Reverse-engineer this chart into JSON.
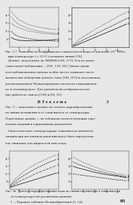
{
  "background": "#e8e8e8",
  "text_color": "#1a1a1a",
  "fig1": {
    "left_panel": {
      "xlim": [
        0,
        5
      ],
      "ylim": [
        0,
        5
      ],
      "curves": [
        {
          "x": [
            0.2,
            0.5,
            1.0,
            2.0,
            3.0,
            4.0,
            4.8
          ],
          "y": [
            4.5,
            4.0,
            3.4,
            2.8,
            2.5,
            2.3,
            2.2
          ],
          "style": "dotted"
        },
        {
          "x": [
            0.2,
            0.5,
            1.0,
            2.0,
            3.0,
            4.0,
            4.8
          ],
          "y": [
            3.8,
            3.3,
            2.8,
            2.3,
            2.0,
            1.8,
            1.7
          ],
          "style": "dotted"
        },
        {
          "x": [
            0.2,
            0.5,
            1.0,
            2.0,
            3.0,
            4.0,
            4.8
          ],
          "y": [
            3.0,
            2.7,
            2.4,
            2.0,
            1.8,
            1.65,
            1.6
          ],
          "style": "dotted"
        },
        {
          "x": [
            0.2,
            0.5,
            1.0,
            2.0,
            3.0,
            4.0,
            4.8
          ],
          "y": [
            2.0,
            1.6,
            1.3,
            1.05,
            0.9,
            0.8,
            0.75
          ],
          "style": "dashed"
        },
        {
          "x": [
            0.2,
            0.5,
            1.0,
            2.0,
            3.0,
            4.0,
            4.8
          ],
          "y": [
            1.2,
            1.0,
            0.85,
            0.8,
            0.82,
            0.88,
            0.95
          ],
          "style": "solid"
        }
      ],
      "xticks": [
        1,
        2,
        3,
        4
      ],
      "yticks": [
        1,
        2,
        3,
        4
      ],
      "curve_labels_right": [
        "1",
        "2",
        "3",
        "4",
        "5"
      ]
    },
    "right_panel": {
      "xlim": [
        0,
        5
      ],
      "ylim": [
        0,
        5
      ],
      "curves": [
        {
          "x": [
            0.1,
            0.5,
            1.0,
            2.0,
            3.0,
            4.0,
            4.8
          ],
          "y": [
            0.3,
            0.8,
            1.3,
            2.2,
            3.0,
            3.8,
            4.4
          ],
          "style": "dotted"
        },
        {
          "x": [
            0.1,
            0.5,
            1.0,
            2.0,
            3.0,
            4.0,
            4.8
          ],
          "y": [
            0.2,
            0.5,
            0.9,
            1.6,
            2.3,
            3.0,
            3.6
          ],
          "style": "dashed"
        },
        {
          "x": [
            0.1,
            0.5,
            1.0,
            2.0,
            3.0,
            4.0,
            4.8
          ],
          "y": [
            0.1,
            0.3,
            0.6,
            1.2,
            1.8,
            2.4,
            2.9
          ],
          "style": "solid"
        }
      ],
      "xticks": [
        1,
        2,
        3,
        4
      ],
      "yticks": [
        1,
        2,
        3,
        4
      ],
      "curve_labels_right": [
        "1",
        "2",
        "3"
      ]
    }
  },
  "caption1_line1": "Рис. 3.7. Зависимость коэффициента сжимаемости воды от давления (10² МПа)",
  "caption1_line2": "   при температуре t = 25°C (сплошная линия) [78]",
  "body_text1_lines": [
    "   Данные, полученные на ЭНИМК [140, 177]. Тем не менее",
    "существуют публикации ... [101, 118, 20]. Однако среди",
    "всех публикованных данных особое место занимают систе-",
    "матические измерения данного типа [146, 267] и систематика,",
    "рекомендованная Международным союзом по термодинами-",
    "ке и теплопередаче. Для данной цели отобраны послед-",
    "ние работы из списка [150] и [26, 51]."
  ],
  "section_line": "В. Т е п л о т а",
  "section_num": "3",
  "body_text2_lines": [
    "Рис. 3 — показывает данные по теплоте парообразования",
    "на линии насыщения и её зависимость от температуры.",
    "Перегонные данные — по таблицам соответствующих спра-",
    "вочных изданий и нормативных документов."
  ],
  "body_text3_lines": [
    "   Гипотетические температурные зависимости данной ве-",
    "личины при постоянном давлении могут быть определены",
    "как типичные для жидкостей типа воды."
  ],
  "fig2": {
    "left_panel": {
      "xlim": [
        0,
        5
      ],
      "ylim": [
        0,
        5
      ],
      "curves": [
        {
          "x": [
            0.1,
            0.5,
            1.0,
            2.0,
            3.0,
            4.0,
            4.8
          ],
          "y": [
            0.5,
            1.2,
            1.8,
            2.8,
            3.5,
            4.1,
            4.5
          ],
          "style": "dotted"
        },
        {
          "x": [
            0.1,
            0.5,
            1.0,
            2.0,
            3.0,
            4.0,
            4.8
          ],
          "y": [
            0.4,
            0.9,
            1.4,
            2.2,
            2.9,
            3.5,
            3.9
          ],
          "style": "dashed"
        },
        {
          "x": [
            0.1,
            0.5,
            1.0,
            2.0,
            3.0,
            4.0,
            4.8
          ],
          "y": [
            0.3,
            0.6,
            1.0,
            1.6,
            2.2,
            2.7,
            3.1
          ],
          "style": "dotdash"
        },
        {
          "x": [
            0.1,
            0.5,
            1.0,
            2.0,
            3.0,
            4.0,
            4.8
          ],
          "y": [
            0.2,
            0.4,
            0.6,
            1.0,
            1.4,
            1.8,
            2.1
          ],
          "style": "solid"
        }
      ],
      "xticks": [
        1,
        2,
        3,
        4
      ],
      "yticks": [
        1,
        2,
        3,
        4
      ],
      "curve_labels_right": [
        "1",
        "2",
        "3",
        "4"
      ]
    },
    "right_panel": {
      "xlim": [
        0,
        5
      ],
      "ylim": [
        0,
        5
      ],
      "curves": [
        {
          "x": [
            0.1,
            0.5,
            1.0,
            2.0,
            3.0,
            4.0,
            4.8
          ],
          "y": [
            4.2,
            3.9,
            3.5,
            2.9,
            2.4,
            2.0,
            1.8
          ],
          "style": "dotted"
        },
        {
          "x": [
            0.1,
            0.5,
            1.0,
            2.0,
            3.0,
            4.0,
            4.8
          ],
          "y": [
            3.6,
            3.3,
            3.0,
            2.5,
            2.1,
            1.8,
            1.6
          ],
          "style": "dashed"
        },
        {
          "x": [
            0.1,
            0.5,
            1.0,
            2.0,
            3.0,
            4.0,
            4.8
          ],
          "y": [
            3.0,
            2.8,
            2.6,
            2.2,
            1.9,
            1.7,
            1.5
          ],
          "style": "solid"
        },
        {
          "x": [
            0.1,
            0.5,
            1.0,
            2.0,
            3.0,
            4.0,
            4.8
          ],
          "y": [
            2.0,
            1.9,
            1.8,
            1.6,
            1.4,
            1.2,
            1.1
          ],
          "style": "dashed"
        }
      ],
      "xticks": [
        1,
        2,
        3,
        4
      ],
      "yticks": [
        1,
        2,
        3,
        4
      ],
      "curve_labels_right": [
        "1",
        "2",
        "3",
        "4"
      ]
    }
  },
  "caption2_line1": "Рис. 3в. Теплота парообразования воды на линии насыщения в зависимости",
  "caption2_line2": "      от температуры (по различным данным).",
  "caption2_line3": "      1 — Паровые таблицы (Великобритания) [2, 14]",
  "page_number": "85"
}
